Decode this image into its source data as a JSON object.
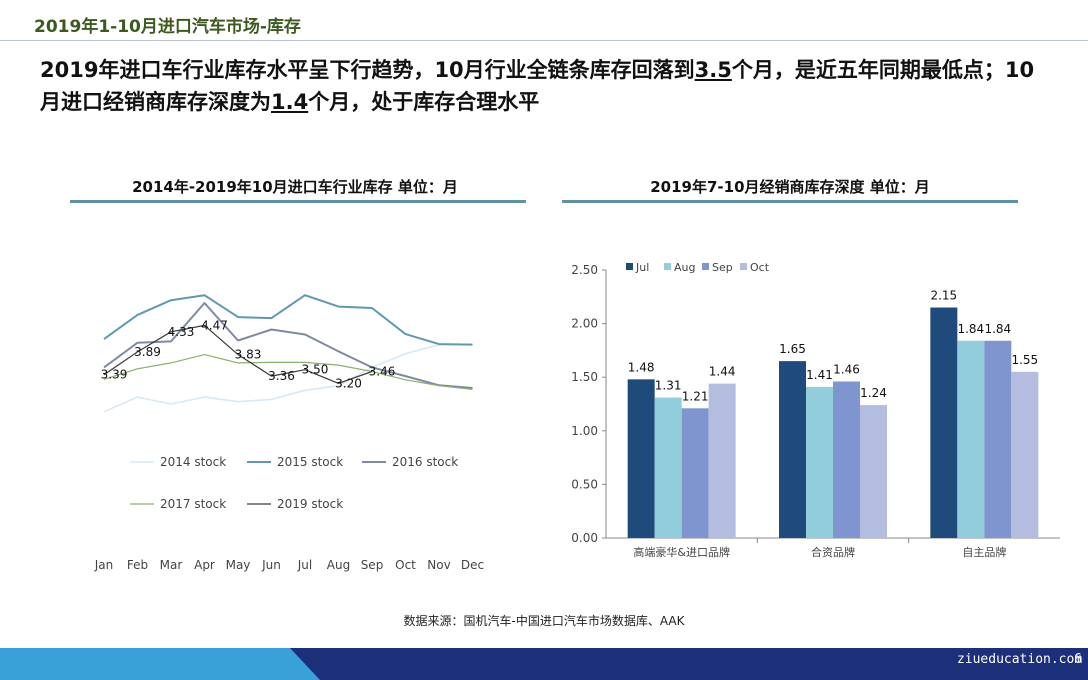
{
  "header": {
    "title_prefix": "2019年1-10月进口汽车市场-",
    "title_accent": "库存"
  },
  "headline": {
    "part1": "2019年进口车行业库存水平呈下行趋势，10月行业全链条库存回落到",
    "value1": "3.5",
    "part2": "个月，是近五年同期最低点；10月进口经销商库存深度为",
    "value2": "1.4",
    "part3": "个月，处于库存合理水平"
  },
  "left_panel": {
    "title": "2014年-2019年10月进口车行业库存     单位：月"
  },
  "right_panel": {
    "title": "2019年7-10月经销商库存深度    单位：月"
  },
  "source": "数据来源：国机汽车-中国进口汽车市场数据库、AAK",
  "footer": {
    "website": "ziueducation.com",
    "page_number": "6"
  },
  "colors": {
    "title": "#3d5a1e",
    "rule": "#5d8fa8",
    "footer_dark": "#1b2f7a",
    "footer_light": "#3aa0d8"
  },
  "chart_data": [
    {
      "type": "line",
      "title": "2014年-2019年10月进口车行业库存",
      "x": [
        "Jan",
        "Feb",
        "Mar",
        "Apr",
        "May",
        "Jun",
        "Jul",
        "Aug",
        "Sep",
        "Oct",
        "Nov",
        "Dec"
      ],
      "ylim": [
        2.4,
        5.9
      ],
      "grid": false,
      "legend": "bottom",
      "series": [
        {
          "name": "2014 stock",
          "color": "#d6e9f5",
          "width": 1.6,
          "values": [
            2.58,
            2.9,
            2.75,
            2.9,
            2.8,
            2.85,
            3.05,
            3.15,
            3.55,
            3.85,
            4.05,
            4.05
          ]
        },
        {
          "name": "2015 stock",
          "color": "#5e99b2",
          "width": 2,
          "values": [
            4.17,
            4.7,
            5.02,
            5.13,
            4.65,
            4.63,
            5.13,
            4.88,
            4.85,
            4.28,
            4.06,
            4.05
          ]
        },
        {
          "name": "2016 stock",
          "color": "#7d8aa3",
          "width": 2,
          "values": [
            3.55,
            4.09,
            4.12,
            4.96,
            4.14,
            4.38,
            4.27,
            3.9,
            3.55,
            3.36,
            3.16,
            3.1
          ]
        },
        {
          "name": "2017 stock",
          "color": "#8bb06a",
          "width": 1.2,
          "values": [
            3.29,
            3.52,
            3.65,
            3.83,
            3.65,
            3.66,
            3.66,
            3.6,
            3.46,
            3.28,
            3.15,
            3.07
          ]
        },
        {
          "name": "2019 stock",
          "color": "#3a3a3a",
          "width": 1.2,
          "values": [
            3.39,
            3.89,
            4.33,
            4.47,
            3.83,
            3.36,
            3.5,
            3.2,
            3.46,
            null,
            null,
            null
          ]
        }
      ],
      "annotations": [
        {
          "series": "2019 stock",
          "index": 0,
          "text": "3.39"
        },
        {
          "series": "2019 stock",
          "index": 1,
          "text": "3.89"
        },
        {
          "series": "2019 stock",
          "index": 2,
          "text": "4.33"
        },
        {
          "series": "2019 stock",
          "index": 3,
          "text": "4.47"
        },
        {
          "series": "2019 stock",
          "index": 4,
          "text": "3.83"
        },
        {
          "series": "2019 stock",
          "index": 5,
          "text": "3.36"
        },
        {
          "series": "2019 stock",
          "index": 6,
          "text": "3.50"
        },
        {
          "series": "2019 stock",
          "index": 7,
          "text": "3.20"
        },
        {
          "series": "2019 stock",
          "index": 8,
          "text": "3.46"
        }
      ]
    },
    {
      "type": "bar",
      "title": "2019年7-10月经销商库存深度",
      "categories": [
        "高端豪华&进口品牌",
        "合资品牌",
        "自主品牌"
      ],
      "ylim": [
        0,
        2.5
      ],
      "yticks": [
        "0.00",
        "0.50",
        "1.00",
        "1.50",
        "2.00",
        "2.50"
      ],
      "legend": "top-left",
      "series": [
        {
          "name": "Jul",
          "color": "#1f4a7c",
          "values": [
            1.48,
            1.65,
            2.15
          ],
          "labels": [
            "1.48",
            "1.65",
            "2.15"
          ]
        },
        {
          "name": "Aug",
          "color": "#92cddc",
          "values": [
            1.31,
            1.41,
            1.84
          ],
          "labels": [
            "1.31",
            "1.41",
            "1.84"
          ]
        },
        {
          "name": "Sep",
          "color": "#7f95d0",
          "values": [
            1.21,
            1.46,
            1.84
          ],
          "labels": [
            "1.21",
            "1.46",
            "1.84"
          ]
        },
        {
          "name": "Oct",
          "color": "#b4bde0",
          "values": [
            1.44,
            1.24,
            1.55
          ],
          "labels": [
            "1.44",
            "1.24",
            "1.55"
          ]
        }
      ]
    }
  ]
}
